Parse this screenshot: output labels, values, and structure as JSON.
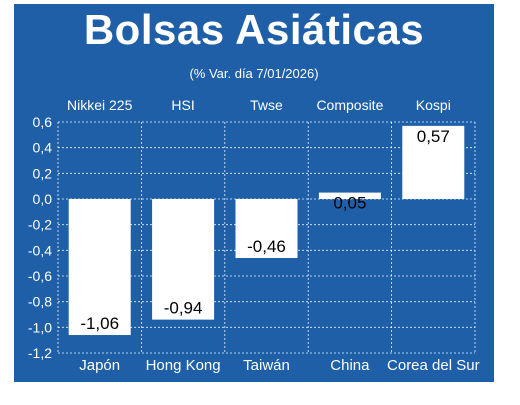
{
  "header": {
    "title": "Bolsas Asiáticas",
    "subtitle": "(% Var. día  7/01/2026)"
  },
  "colors": {
    "background": "#1f5fa8",
    "bar": "#ffffff",
    "text": "#ffffff",
    "label_text": "#000000"
  },
  "chart_data": {
    "type": "bar",
    "title": "Bolsas Asiáticas",
    "subtitle": "(% Var. día  7/01/2026)",
    "indices": [
      "Nikkei 225",
      "HSI",
      "Twse",
      "Composite",
      "Kospi"
    ],
    "categories": [
      "Japón",
      "Hong Kong",
      "Taiwán",
      "China",
      "Corea del Sur"
    ],
    "values": [
      -1.06,
      -0.94,
      -0.46,
      0.05,
      0.57
    ],
    "value_labels": [
      "-1,06",
      "-0,94",
      "-0,46",
      "0,05",
      "0,57"
    ],
    "ylim": [
      -1.2,
      0.6
    ],
    "yticks": [
      0.6,
      0.4,
      0.2,
      0.0,
      -0.2,
      -0.4,
      -0.6,
      -0.8,
      -1.0,
      -1.2
    ],
    "ytick_labels": [
      "0,6",
      "0,4",
      "0,2",
      "0,0",
      "-0,2",
      "-0,4",
      "-0,6",
      "-0,8",
      "-1,0",
      "-1,2"
    ],
    "grid": true,
    "xlabel": "",
    "ylabel": ""
  }
}
